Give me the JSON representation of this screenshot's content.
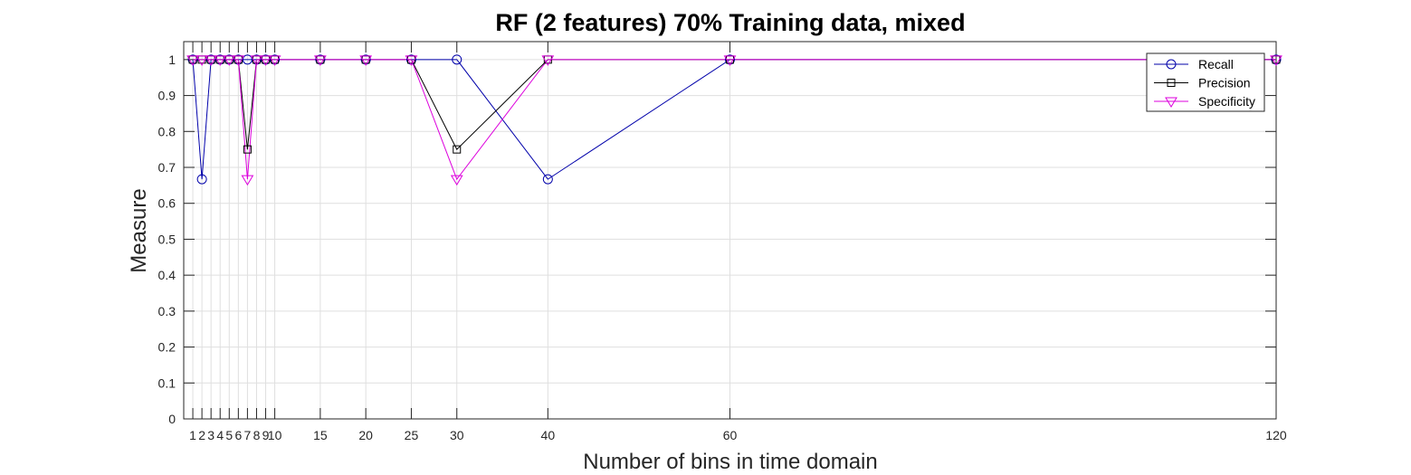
{
  "chart_data": {
    "type": "line",
    "title": "RF (2 features) 70% Training data, mixed",
    "xlabel": "Number of bins in time domain",
    "ylabel": "Measure",
    "x": [
      1,
      2,
      3,
      4,
      5,
      6,
      7,
      8,
      9,
      10,
      15,
      20,
      25,
      30,
      40,
      60,
      120
    ],
    "xticks": [
      1,
      2,
      3,
      4,
      5,
      6,
      7,
      8,
      9,
      10,
      15,
      20,
      25,
      30,
      40,
      60,
      120
    ],
    "xtick_labels": [
      "1",
      "2",
      "3",
      "4",
      "5",
      "6",
      "7",
      "8",
      "9",
      "10",
      "15",
      "20",
      "25",
      "30",
      "40",
      "60",
      "120"
    ],
    "xlim": [
      0,
      120
    ],
    "ylim": [
      0,
      1.05
    ],
    "yticks": [
      0,
      0.1,
      0.2,
      0.3,
      0.4,
      0.5,
      0.6,
      0.7,
      0.8,
      0.9,
      1
    ],
    "ytick_labels": [
      "0",
      "0.1",
      "0.2",
      "0.3",
      "0.4",
      "0.5",
      "0.6",
      "0.7",
      "0.8",
      "0.9",
      "1"
    ],
    "grid": true,
    "legend_position": "top-right",
    "series": [
      {
        "name": "Recall",
        "color": "#0000aa",
        "marker": "circle",
        "values": [
          1,
          0.667,
          1,
          1,
          1,
          1,
          1,
          1,
          1,
          1,
          1,
          1,
          1,
          1,
          0.667,
          1,
          1
        ]
      },
      {
        "name": "Precision",
        "color": "#000000",
        "marker": "square",
        "values": [
          1,
          1,
          1,
          1,
          1,
          1,
          0.75,
          1,
          1,
          1,
          1,
          1,
          1,
          0.75,
          1,
          1,
          1
        ]
      },
      {
        "name": "Specificity",
        "color": "#dd00dd",
        "marker": "triangle-down",
        "values": [
          1,
          1,
          1,
          1,
          1,
          1,
          0.667,
          1,
          1,
          1,
          1,
          1,
          1,
          0.667,
          1,
          1,
          1
        ]
      }
    ]
  }
}
